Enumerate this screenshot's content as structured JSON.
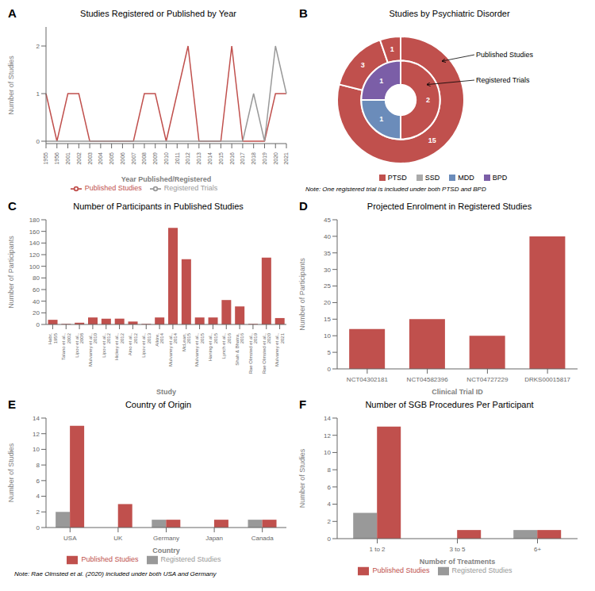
{
  "chart_data": [
    {
      "type": "line",
      "panel_label": "A",
      "title": "Studies Registered or Published by Year",
      "x_label": "Year Published/Registered",
      "y_label": "Number of Studies",
      "categories": [
        "1955",
        "1956",
        "2001",
        "2002",
        "2003",
        "2004",
        "2005",
        "2006",
        "2007",
        "2008",
        "2009",
        "2010",
        "2011",
        "2012",
        "2013",
        "2014",
        "2015",
        "2016",
        "2017",
        "2018",
        "2019",
        "2020",
        "2021"
      ],
      "series": [
        {
          "name": "Published Studies",
          "color": "#c0504d",
          "values": [
            1,
            0,
            1,
            1,
            0,
            0,
            0,
            0,
            0,
            1,
            1,
            0,
            1,
            2,
            0,
            0,
            0,
            2,
            0,
            0,
            0,
            1,
            1
          ]
        },
        {
          "name": "Registered Trials",
          "color": "#999999",
          "values": [
            0,
            0,
            0,
            0,
            0,
            0,
            0,
            0,
            0,
            0,
            0,
            0,
            0,
            0,
            0,
            0,
            0,
            0,
            0,
            1,
            0,
            2,
            1
          ]
        }
      ],
      "ylim": [
        -0.05,
        2.4
      ],
      "yticks": [
        0,
        1,
        2
      ],
      "legend": "bottom",
      "grid": false
    },
    {
      "type": "pie",
      "panel_label": "B",
      "title": "Studies by Psychiatric Disorder",
      "categories": [
        "PTSD",
        "SSD",
        "MDD",
        "BPD"
      ],
      "series": [
        {
          "name": "Published Studies",
          "colors": [
            "#c0504d",
            "#c0504d",
            "#c0504d",
            "#c0504d"
          ],
          "values": [
            15,
            3,
            0,
            1
          ]
        },
        {
          "name": "Registered Trials",
          "colors": [
            "#c0504d",
            "#c0504d",
            "#6b8cba",
            "#7b5ea7"
          ],
          "values": [
            2,
            0,
            1,
            1
          ]
        }
      ],
      "legend_colors": [
        "#c0504d",
        "#aaaaaa",
        "#6b8cba",
        "#7b5ea7"
      ],
      "legend": "bottom",
      "data_labels": true,
      "note": "Note: One registered trial is included under both PTSD and BPD"
    },
    {
      "type": "bar",
      "panel_label": "C",
      "title": "Number of Participants in Published Studies",
      "x_label": "Study",
      "y_label": "Number of Participants",
      "categories": [
        "Habr,\n1955",
        "Talano et al.,\n2002",
        "Lipov et al.,\n2008",
        "Mulvaney et al.,\n2010",
        "Lipov et al.,\n2012",
        "Hickey et al.,\n2012",
        "Aino et al.,\n2012",
        "Lipov et al.,\n2013",
        "Alkire,\n2014",
        "Mulvaney et al.,\n2014",
        "McLean,\n2015",
        "Mulvaney et al.,\n2015",
        "Haning et al.,\n2015",
        "Lynch et al.,\n2016",
        "Shah & Bhatra,\n2016",
        "Rae Olmsted et al.,\n2019",
        "Rae Olmsted et al.,\n2020",
        "Mulvaney et al.,\n2021"
      ],
      "values": [
        8,
        1,
        3,
        12,
        10,
        10,
        5,
        1,
        12,
        166,
        112,
        12,
        12,
        42,
        31,
        1,
        115,
        11
      ],
      "color": "#c0504d",
      "ylim": [
        0,
        180
      ],
      "yticks": [
        0,
        20,
        40,
        60,
        80,
        100,
        120,
        140,
        160,
        180
      ],
      "grid": false
    },
    {
      "type": "bar",
      "panel_label": "D",
      "title": "Projected Enrolment in Registered Studies",
      "x_label": "Clinical Trial ID",
      "y_label": "Number of Participants",
      "categories": [
        "NCT04302181",
        "NCT04582396",
        "NCT04727229",
        "DRKS00015817"
      ],
      "values": [
        12,
        15,
        10,
        40
      ],
      "color": "#c0504d",
      "ylim": [
        0,
        45
      ],
      "yticks": [
        0,
        5,
        10,
        15,
        20,
        25,
        30,
        35,
        40,
        45
      ],
      "grid": false
    },
    {
      "type": "bar",
      "panel_label": "E",
      "title": "Country of Origin",
      "x_label": "Country",
      "y_label": "Number of Studies",
      "categories": [
        "USA",
        "UK",
        "Germany",
        "Japan",
        "Canada"
      ],
      "series": [
        {
          "name": "Registered Studies",
          "color": "#999999",
          "values": [
            2,
            0,
            1,
            0,
            1
          ]
        },
        {
          "name": "Published Studies",
          "color": "#c0504d",
          "values": [
            13,
            3,
            1,
            1,
            1
          ]
        }
      ],
      "ylim": [
        0,
        14
      ],
      "yticks": [
        0,
        2,
        4,
        6,
        8,
        10,
        12,
        14
      ],
      "legend": "bottom",
      "grid": false,
      "note": "Note: Rae Olmsted et al. (2020) included under both USA and Germany"
    },
    {
      "type": "bar",
      "panel_label": "F",
      "title": "Number of SGB Procedures Per Participant",
      "x_label": "Number of Treatments",
      "y_label": "Number of Studies",
      "categories": [
        "1 to 2",
        "3 to 5",
        "6+"
      ],
      "series": [
        {
          "name": "Registered Studies",
          "color": "#999999",
          "values": [
            3,
            0,
            1
          ]
        },
        {
          "name": "Published Studies",
          "color": "#c0504d",
          "values": [
            13,
            1,
            1
          ]
        }
      ],
      "ylim": [
        0,
        14
      ],
      "yticks": [
        0,
        2,
        4,
        6,
        8,
        10,
        12,
        14
      ],
      "legend": "bottom",
      "grid": false
    }
  ]
}
